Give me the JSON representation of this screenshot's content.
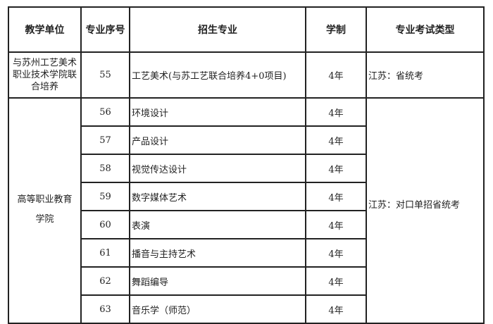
{
  "headers": [
    "教学单位",
    "专业序号",
    "招生专业",
    "学制",
    "专业考试类型"
  ],
  "group1": {
    "unit": "与苏州工艺美术职业技术学院联合培养",
    "no": "55",
    "major": "工艺美术(与苏工艺联合培养4+0项目)",
    "years": "4年",
    "exam": "江苏：省统考"
  },
  "group2": {
    "unit": "高等职业教育学院",
    "exam": "江苏：对口单招省统考",
    "rows": [
      {
        "no": "56",
        "major": "环境设计",
        "years": "4年"
      },
      {
        "no": "57",
        "major": "产品设计",
        "years": "4年"
      },
      {
        "no": "58",
        "major": "视觉传达设计",
        "years": "4年"
      },
      {
        "no": "59",
        "major": "数字媒体艺术",
        "years": "4年"
      },
      {
        "no": "60",
        "major": "表演",
        "years": "4年"
      },
      {
        "no": "61",
        "major": "播音与主持艺术",
        "years": "4年"
      },
      {
        "no": "62",
        "major": "舞蹈编导",
        "years": "4年"
      },
      {
        "no": "63",
        "major": "音乐学（师范）",
        "years": "4年"
      }
    ]
  }
}
